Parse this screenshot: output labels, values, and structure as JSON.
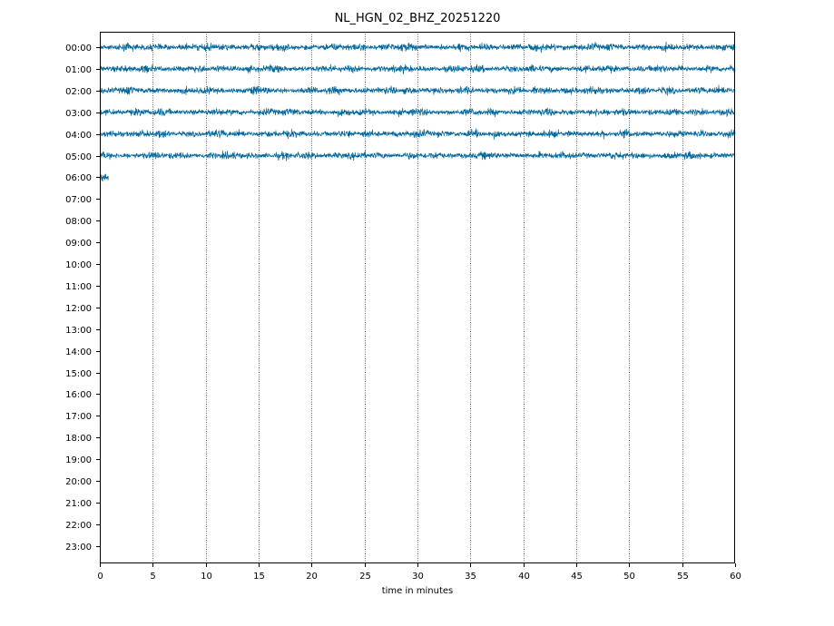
{
  "chart_data": {
    "type": "line",
    "title": "NL_HGN_02_BHZ_20251220",
    "xlabel": "time in minutes",
    "ylabel": "",
    "xlim": [
      0,
      60
    ],
    "xticks": [
      0,
      5,
      10,
      15,
      20,
      25,
      30,
      35,
      40,
      45,
      50,
      55,
      60
    ],
    "vertical_grid": true,
    "grid_style": "dotted",
    "trace_color": "#006699",
    "hour_labels": [
      "00:00",
      "01:00",
      "02:00",
      "03:00",
      "04:00",
      "05:00",
      "06:00",
      "07:00",
      "08:00",
      "09:00",
      "10:00",
      "11:00",
      "12:00",
      "13:00",
      "14:00",
      "15:00",
      "16:00",
      "17:00",
      "18:00",
      "19:00",
      "20:00",
      "21:00",
      "22:00",
      "23:00"
    ],
    "series": [
      {
        "hour": "00:00",
        "start_min": 0,
        "end_min": 60
      },
      {
        "hour": "01:00",
        "start_min": 0,
        "end_min": 60
      },
      {
        "hour": "02:00",
        "start_min": 0,
        "end_min": 60
      },
      {
        "hour": "03:00",
        "start_min": 0,
        "end_min": 60
      },
      {
        "hour": "04:00",
        "start_min": 0,
        "end_min": 60
      },
      {
        "hour": "05:00",
        "start_min": 0,
        "end_min": 60
      },
      {
        "hour": "06:00",
        "start_min": 0,
        "end_min": 0.8
      }
    ]
  }
}
